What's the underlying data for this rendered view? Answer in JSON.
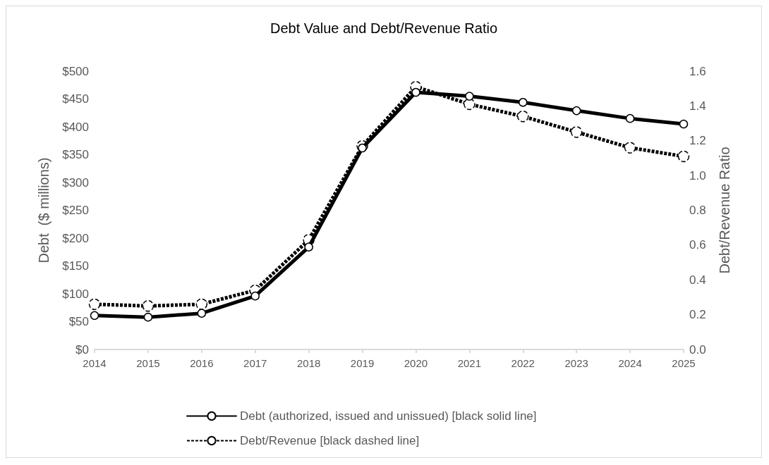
{
  "chart_data": {
    "type": "line",
    "title": "Debt Value and Debt/Revenue Ratio",
    "ylabel": "Debt  ($ millions)",
    "y2label": "Debt/Revenue Ratio",
    "categories": [
      "2014",
      "2015",
      "2016",
      "2017",
      "2018",
      "2019",
      "2020",
      "2021",
      "2022",
      "2023",
      "2024",
      "2025"
    ],
    "series": [
      {
        "name": "Debt (authorized, issued and unissued) [black solid line]",
        "color": "#000000",
        "line_style": "solid",
        "values": [
          61,
          58,
          65,
          96,
          184,
          362,
          462,
          455,
          444,
          429,
          415,
          405
        ]
      },
      {
        "name": "Debt/Revenue [black dashed line]",
        "color": "#000000",
        "line_style": "dashed",
        "axis": "y2",
        "values": [
          0.26,
          0.25,
          0.26,
          0.34,
          0.63,
          1.17,
          1.51,
          1.41,
          1.34,
          1.25,
          1.16,
          1.11
        ]
      }
    ],
    "ylim": [
      0,
      500
    ],
    "yticks": [
      {
        "value": 0,
        "label": "$0"
      },
      {
        "value": 50,
        "label": "$50"
      },
      {
        "value": 100,
        "label": "$100"
      },
      {
        "value": 150,
        "label": "$150"
      },
      {
        "value": 200,
        "label": "$200"
      },
      {
        "value": 250,
        "label": "$250"
      },
      {
        "value": 300,
        "label": "$300"
      },
      {
        "value": 350,
        "label": "$350"
      },
      {
        "value": 400,
        "label": "$400"
      },
      {
        "value": 450,
        "label": "$450"
      },
      {
        "value": 500,
        "label": "$500"
      }
    ],
    "y2lim": [
      0,
      1.6
    ],
    "y2ticks": [
      {
        "value": 0,
        "label": "0.0"
      },
      {
        "value": 0.2,
        "label": "0.2"
      },
      {
        "value": 0.4,
        "label": "0.4"
      },
      {
        "value": 0.6,
        "label": "0.6"
      },
      {
        "value": 0.8,
        "label": "0.8"
      },
      {
        "value": 1.0,
        "label": "1.0"
      },
      {
        "value": 1.2,
        "label": "1.2"
      },
      {
        "value": 1.4,
        "label": "1.4"
      },
      {
        "value": 1.6,
        "label": "1.6"
      }
    ],
    "marker": "circle",
    "grid": false,
    "legend": "bottom"
  }
}
